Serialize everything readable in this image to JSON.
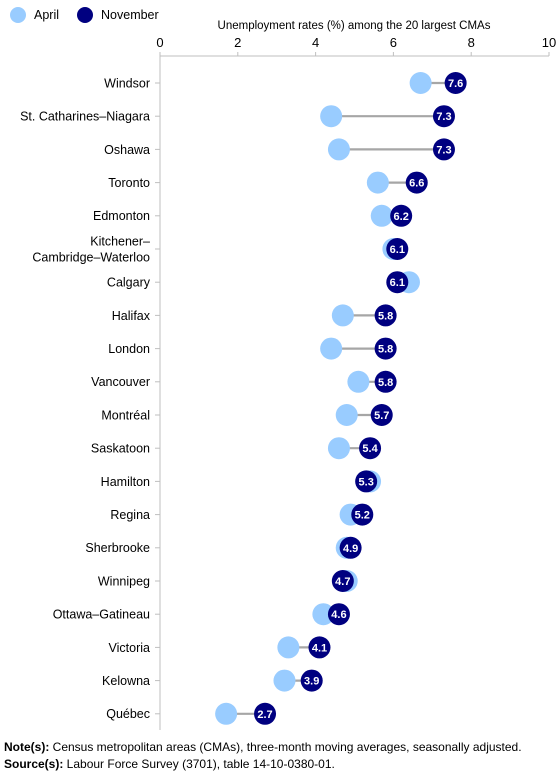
{
  "legend": {
    "april_label": "April",
    "november_label": "November"
  },
  "colors": {
    "april": "#99ccff",
    "november": "#000080",
    "connector": "#a6a6a6",
    "axis": "#bfbfbf"
  },
  "chart_data": {
    "type": "dumbbell",
    "title": "Unemployment rates (%) among the 20 largest CMAs",
    "xlim": [
      0,
      10
    ],
    "xticks": [
      "0",
      "2",
      "4",
      "6",
      "8",
      "10"
    ],
    "series": [
      {
        "name": "April"
      },
      {
        "name": "November"
      }
    ],
    "categories": [
      [
        "Windsor"
      ],
      [
        "St. Catharines–Niagara"
      ],
      [
        "Oshawa"
      ],
      [
        "Toronto"
      ],
      [
        "Edmonton"
      ],
      [
        "Kitchener–",
        "Cambridge–Waterloo"
      ],
      [
        "Calgary"
      ],
      [
        "Halifax"
      ],
      [
        "London"
      ],
      [
        "Vancouver"
      ],
      [
        "Montréal"
      ],
      [
        "Saskatoon"
      ],
      [
        "Hamilton"
      ],
      [
        "Regina"
      ],
      [
        "Sherbrooke"
      ],
      [
        "Winnipeg"
      ],
      [
        "Ottawa–Gatineau"
      ],
      [
        "Victoria"
      ],
      [
        "Kelowna"
      ],
      [
        "Québec"
      ]
    ],
    "april": [
      6.7,
      4.4,
      4.6,
      5.6,
      5.7,
      6.0,
      6.4,
      4.7,
      4.4,
      5.1,
      4.8,
      4.6,
      5.4,
      4.9,
      4.8,
      4.8,
      4.2,
      3.3,
      3.2,
      1.7
    ],
    "november": [
      7.6,
      7.3,
      7.3,
      6.6,
      6.2,
      6.1,
      6.1,
      5.8,
      5.8,
      5.8,
      5.7,
      5.4,
      5.3,
      5.2,
      4.9,
      4.7,
      4.6,
      4.1,
      3.9,
      2.7
    ],
    "november_labels": [
      "7.6",
      "7.3",
      "7.3",
      "6.6",
      "6.2",
      "6.1",
      "6.1",
      "5.8",
      "5.8",
      "5.8",
      "5.7",
      "5.4",
      "5.3",
      "5.2",
      "4.9",
      "4.7",
      "4.6",
      "4.1",
      "3.9",
      "2.7"
    ]
  },
  "notes": {
    "note_label": "Note(s):",
    "note_text": " Census metropolitan areas (CMAs), three-month moving averages, seasonally adjusted.",
    "source_label": "Source(s):",
    "source_text": " Labour Force Survey (3701), table 14-10-0380-01."
  }
}
